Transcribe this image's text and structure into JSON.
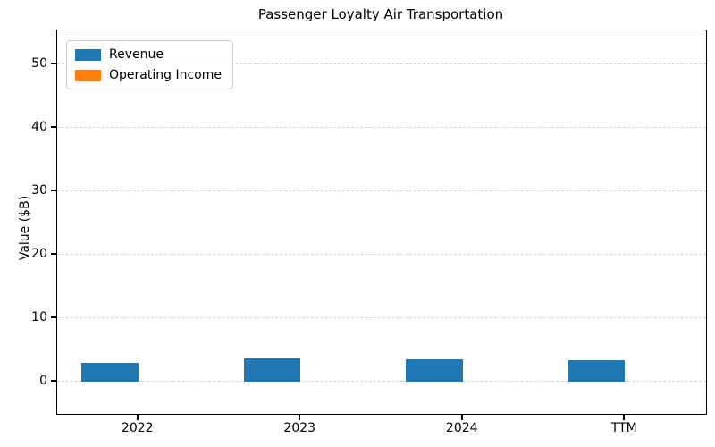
{
  "figure": {
    "title": "Passenger Loyalty Air Transportation",
    "ylabel": "Value ($B)"
  },
  "chart_data": {
    "type": "bar",
    "title": "Passenger Loyalty Air Transportation",
    "xlabel": "",
    "ylabel": "Value ($B)",
    "categories": [
      "2022",
      "2023",
      "2024",
      "TTM"
    ],
    "series": [
      {
        "name": "Revenue",
        "color": "#1f77b4",
        "values": [
          2.9,
          3.7,
          3.5,
          3.3
        ]
      },
      {
        "name": "Operating Income",
        "color": "#ff7f0e",
        "values": [
          0.0,
          0.0,
          0.0,
          0.0
        ]
      }
    ],
    "yticks": [
      0,
      10,
      20,
      30,
      40,
      50
    ],
    "ylim": [
      -5.1,
      55.4
    ],
    "grid": "horizontal-dashed",
    "gridline_color": "#d5d5d5",
    "legend_position": "upper-left",
    "bar_width_fraction": 0.35,
    "background_color": "#ffffff",
    "spine_color": "#000000"
  }
}
